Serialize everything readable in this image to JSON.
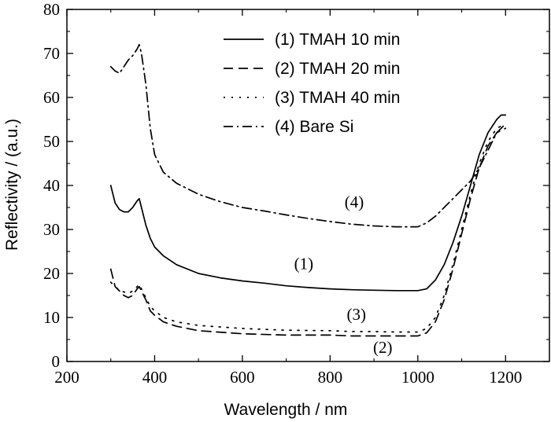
{
  "chart_data": {
    "type": "line",
    "xlabel": "Wavelength / nm",
    "ylabel": "Reflectivity / (a.u.)",
    "xlim": [
      200,
      1300
    ],
    "ylim": [
      0,
      80
    ],
    "x_ticks": [
      200,
      400,
      600,
      800,
      1000,
      1200
    ],
    "y_ticks": [
      0,
      10,
      20,
      30,
      40,
      50,
      60,
      70,
      80
    ],
    "legend_position": "top-center",
    "grid": false,
    "series": [
      {
        "name": "(1) TMAH 10 min",
        "style": "solid",
        "x": [
          300,
          310,
          320,
          330,
          340,
          350,
          360,
          365,
          370,
          380,
          390,
          400,
          420,
          450,
          500,
          550,
          600,
          650,
          700,
          750,
          800,
          850,
          900,
          950,
          1000,
          1020,
          1040,
          1060,
          1080,
          1100,
          1120,
          1140,
          1160,
          1180,
          1190,
          1200
        ],
        "y": [
          40,
          36,
          34.5,
          34,
          34,
          35,
          36.5,
          37,
          35,
          31,
          28,
          26,
          24,
          22,
          20,
          19,
          18.3,
          17.8,
          17.2,
          16.8,
          16.5,
          16.3,
          16.2,
          16.1,
          16.1,
          16.5,
          18.5,
          22,
          27,
          33,
          40,
          47,
          52,
          55,
          56,
          56
        ]
      },
      {
        "name": "(2) TMAH 20 min",
        "style": "dashed",
        "x": [
          300,
          310,
          320,
          330,
          340,
          350,
          360,
          365,
          370,
          380,
          390,
          400,
          420,
          450,
          500,
          600,
          700,
          800,
          850,
          900,
          950,
          1000,
          1020,
          1040,
          1060,
          1080,
          1100,
          1120,
          1140,
          1160,
          1180,
          1200
        ],
        "y": [
          21,
          17,
          16,
          15,
          14.5,
          15,
          16.5,
          17,
          16,
          14,
          11.5,
          10.5,
          9,
          8,
          7,
          6.3,
          6,
          6,
          5.8,
          5.8,
          5.8,
          5.8,
          6.5,
          9,
          14,
          21,
          29,
          37,
          44,
          49,
          52,
          53
        ]
      },
      {
        "name": "(3) TMAH 40 min",
        "style": "dotted",
        "x": [
          300,
          310,
          320,
          330,
          340,
          350,
          360,
          365,
          370,
          380,
          390,
          400,
          420,
          450,
          500,
          600,
          700,
          800,
          850,
          900,
          950,
          1000,
          1020,
          1040,
          1060,
          1080,
          1100,
          1120,
          1140,
          1160,
          1180,
          1200
        ],
        "y": [
          18,
          17,
          16.2,
          15.8,
          15.5,
          16,
          17,
          17.5,
          16.5,
          14.5,
          12.5,
          11.5,
          10,
          9,
          8.2,
          7.5,
          7.1,
          7,
          6.8,
          6.8,
          6.7,
          6.7,
          7.5,
          10,
          15,
          22,
          30,
          38,
          45,
          50,
          53,
          54
        ]
      },
      {
        "name": "(4) Bare Si",
        "style": "dashdot",
        "x": [
          300,
          310,
          320,
          330,
          340,
          350,
          360,
          365,
          370,
          380,
          390,
          400,
          420,
          450,
          500,
          550,
          600,
          650,
          700,
          750,
          800,
          850,
          900,
          950,
          1000,
          1020,
          1040,
          1060,
          1080,
          1100,
          1120,
          1140,
          1160,
          1180,
          1200
        ],
        "y": [
          67,
          66,
          65.5,
          67,
          68.5,
          69.5,
          71,
          72,
          70,
          63,
          53,
          47,
          43,
          40.5,
          38,
          36.3,
          35,
          34.2,
          33.3,
          32.5,
          31.8,
          31.2,
          30.8,
          30.6,
          30.6,
          31.5,
          33,
          35,
          37,
          39,
          41,
          44,
          48,
          52,
          54
        ]
      }
    ],
    "annotations": [
      {
        "text": "(1)",
        "x": 740,
        "y": 21
      },
      {
        "text": "(2)",
        "x": 920,
        "y": 2
      },
      {
        "text": "(3)",
        "x": 860,
        "y": 9.5
      },
      {
        "text": "(4)",
        "x": 855,
        "y": 35
      }
    ]
  }
}
